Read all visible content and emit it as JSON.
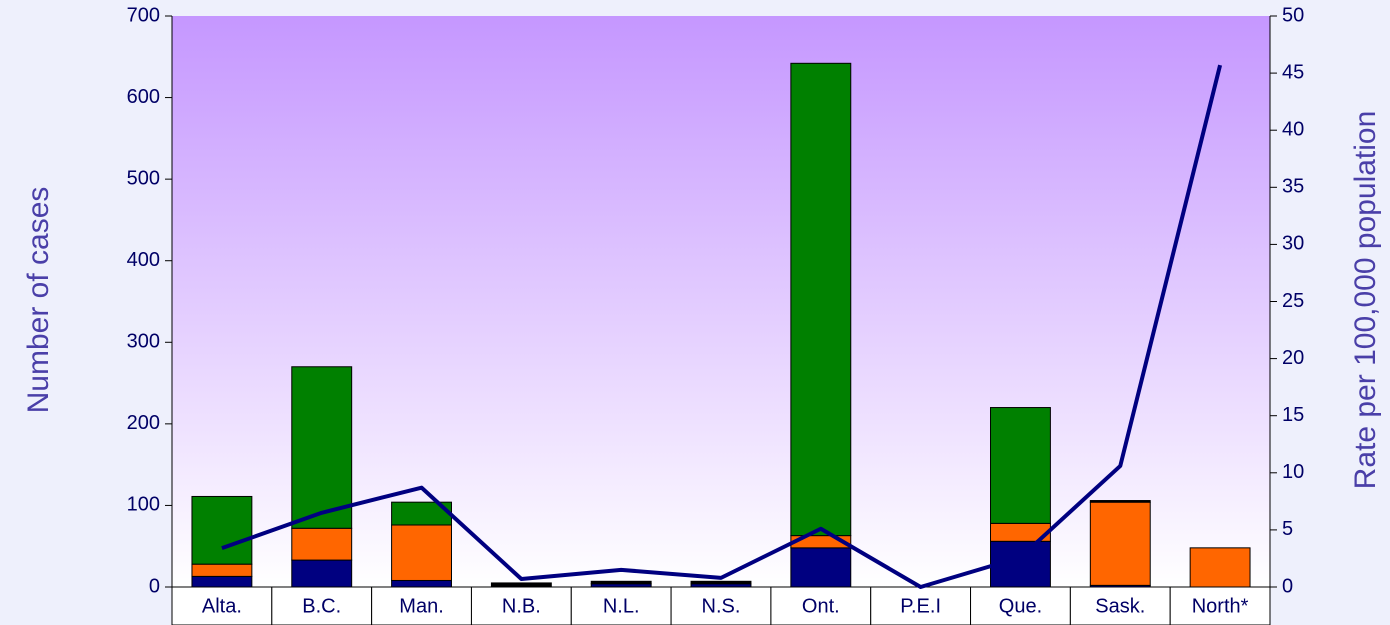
{
  "chart_data": {
    "type": "bar",
    "stacked": true,
    "y_label": "Number of cases",
    "y2_label": "Rate per 100,000 population",
    "categories": [
      "Alta.",
      "B.C.",
      "Man.",
      "N.B.",
      "N.L.",
      "N.S.",
      "Ont.",
      "P.E.I",
      "Que.",
      "Sask.",
      "North*"
    ],
    "series": [
      {
        "color": "#000080",
        "values": [
          13,
          33,
          8,
          0,
          4,
          4,
          48,
          0,
          56,
          2,
          0
        ]
      },
      {
        "color": "#ff6600",
        "values": [
          15,
          39,
          68,
          0,
          0,
          0,
          15,
          0,
          22,
          102,
          48
        ]
      },
      {
        "color": "#008000",
        "values": [
          83,
          198,
          28,
          0,
          0,
          0,
          579,
          0,
          142,
          0,
          0
        ]
      },
      {
        "color": "#000000",
        "values": [
          0,
          0,
          0,
          5,
          3,
          3,
          0,
          0,
          0,
          2,
          0
        ]
      },
      {
        "type": "line",
        "axis": "y2",
        "color": "#000080",
        "values": [
          3.4,
          6.5,
          8.7,
          0.7,
          1.5,
          0.8,
          5.1,
          0,
          2.6,
          10.6,
          45.7
        ]
      }
    ],
    "ylim": [
      0,
      700
    ],
    "yticks": [
      0,
      100,
      200,
      300,
      400,
      500,
      600,
      700
    ],
    "y2lim": [
      0,
      50
    ],
    "y2ticks": [
      0,
      5,
      10,
      15,
      20,
      25,
      30,
      35,
      40,
      45,
      50
    ]
  }
}
